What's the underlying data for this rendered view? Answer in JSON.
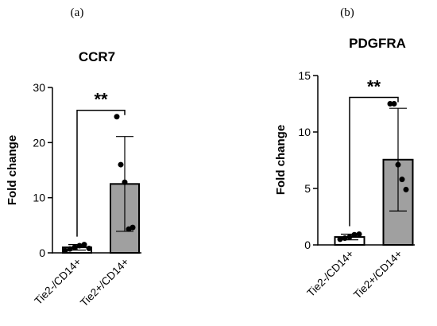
{
  "chart_data": [
    {
      "type": "bar",
      "panel": "(a)",
      "title": "CCR7",
      "xlabel": "",
      "ylabel": "Fold change",
      "ylim": [
        0,
        30
      ],
      "yticks": [
        0,
        10,
        20,
        30
      ],
      "categories": [
        "Tie2-/CD14+",
        "Tie2+/CD14+"
      ],
      "values": [
        1.0,
        12.5
      ],
      "error": [
        0.5,
        8.6
      ],
      "points": [
        [
          0.4,
          0.7,
          1.0,
          1.3,
          1.5,
          0.8
        ],
        [
          24.7,
          16.0,
          12.8,
          4.3,
          4.6
        ]
      ],
      "significance": "**",
      "bar_colors": [
        "#ffffff",
        "#a0a0a0"
      ]
    },
    {
      "type": "bar",
      "panel": "(b)",
      "title": "PDGFRA",
      "xlabel": "",
      "ylabel": "Fold change",
      "ylim": [
        0,
        15
      ],
      "yticks": [
        0,
        5,
        10,
        15
      ],
      "categories": [
        "Tie2-/CD14+",
        "Tie2+/CD14+"
      ],
      "values": [
        0.7,
        7.55
      ],
      "error": [
        0.25,
        4.55
      ],
      "points": [
        [
          0.5,
          0.6,
          0.7,
          0.9,
          0.95
        ],
        [
          12.5,
          12.5,
          7.1,
          5.8,
          4.9
        ]
      ],
      "significance": "**",
      "bar_colors": [
        "#ffffff",
        "#a0a0a0"
      ]
    }
  ]
}
